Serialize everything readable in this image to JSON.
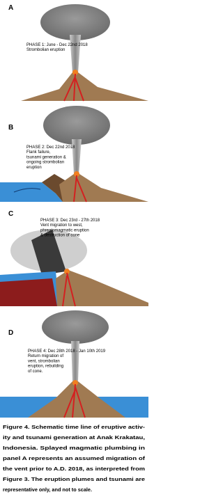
{
  "panels": [
    {
      "label": "A",
      "lines": [
        "PHASE 1: June - Dec 22nd 2018",
        "Strombolian eruption"
      ]
    },
    {
      "label": "B",
      "lines": [
        "PHASE 2: Dec 22nd 2018",
        "Flank failure,",
        "tsunami generation &",
        "ongoing strombolian",
        "eruption"
      ]
    },
    {
      "label": "C",
      "lines": [
        "PHASE 3: Dec 23rd - 27th 2018",
        "Vent migration to west,",
        "phreatomagmatic eruption",
        "& destruction of cone"
      ]
    },
    {
      "label": "D",
      "lines": [
        "PHASE 4: Dec 28th 2018 - Jan 10th 2019",
        "Return migration of",
        "vent, strombolian",
        "eruption, rebuilding",
        "of cone."
      ]
    }
  ],
  "caption": {
    "lines": [
      "Figure 4.  Schematic time line of eruptive activ-",
      "ity and tsunami generation at Anak Krakatau,",
      "Indonesia. Splayed magmatic plumbing in",
      "panel A represents an assumed migration of",
      "the vent prior to A.D. 2018, as interpreted from",
      "Figure 3. The eruption plumes and tsunami are",
      "representative only, and not to scale."
    ]
  }
}
